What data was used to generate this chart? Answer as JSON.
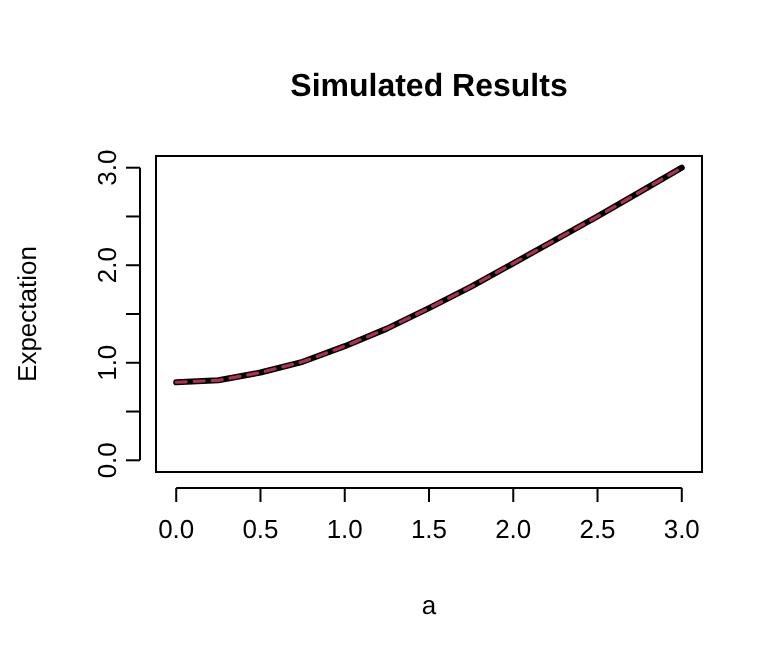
{
  "chart_data": {
    "type": "line",
    "title": "Simulated Results",
    "xlabel": "a",
    "ylabel": "Expectation",
    "x": [
      0,
      0.25,
      0.5,
      0.75,
      1,
      1.25,
      1.5,
      1.75,
      2,
      2.25,
      2.5,
      2.75,
      3
    ],
    "series": [
      {
        "color": "#000000",
        "line_style": "solid",
        "values": [
          0.8,
          0.82,
          0.9,
          1.01,
          1.17,
          1.35,
          1.56,
          1.78,
          2.02,
          2.26,
          2.5,
          2.75,
          3.0
        ]
      },
      {
        "color": "#b03050",
        "line_style": "dashed",
        "values": [
          0.8,
          0.82,
          0.9,
          1.01,
          1.17,
          1.35,
          1.56,
          1.78,
          2.02,
          2.26,
          2.5,
          2.75,
          3.0
        ]
      }
    ],
    "xlim": [
      -0.12,
      3.12
    ],
    "ylim": [
      -0.12,
      3.12
    ],
    "xticks": [
      {
        "value": 0,
        "label": "0.0"
      },
      {
        "value": 0.5,
        "label": "0.5"
      },
      {
        "value": 1,
        "label": "1.0"
      },
      {
        "value": 1.5,
        "label": "1.5"
      },
      {
        "value": 2,
        "label": "2.0"
      },
      {
        "value": 2.5,
        "label": "2.5"
      },
      {
        "value": 3,
        "label": "3.0"
      }
    ],
    "yticks": [
      {
        "value": 0,
        "label": "0.0"
      },
      {
        "value": 0.5,
        "label": null
      },
      {
        "value": 1,
        "label": "1.0"
      },
      {
        "value": 1.5,
        "label": null
      },
      {
        "value": 2,
        "label": "2.0"
      },
      {
        "value": 2.5,
        "label": null
      },
      {
        "value": 3,
        "label": "3.0"
      }
    ],
    "marker": "none"
  }
}
